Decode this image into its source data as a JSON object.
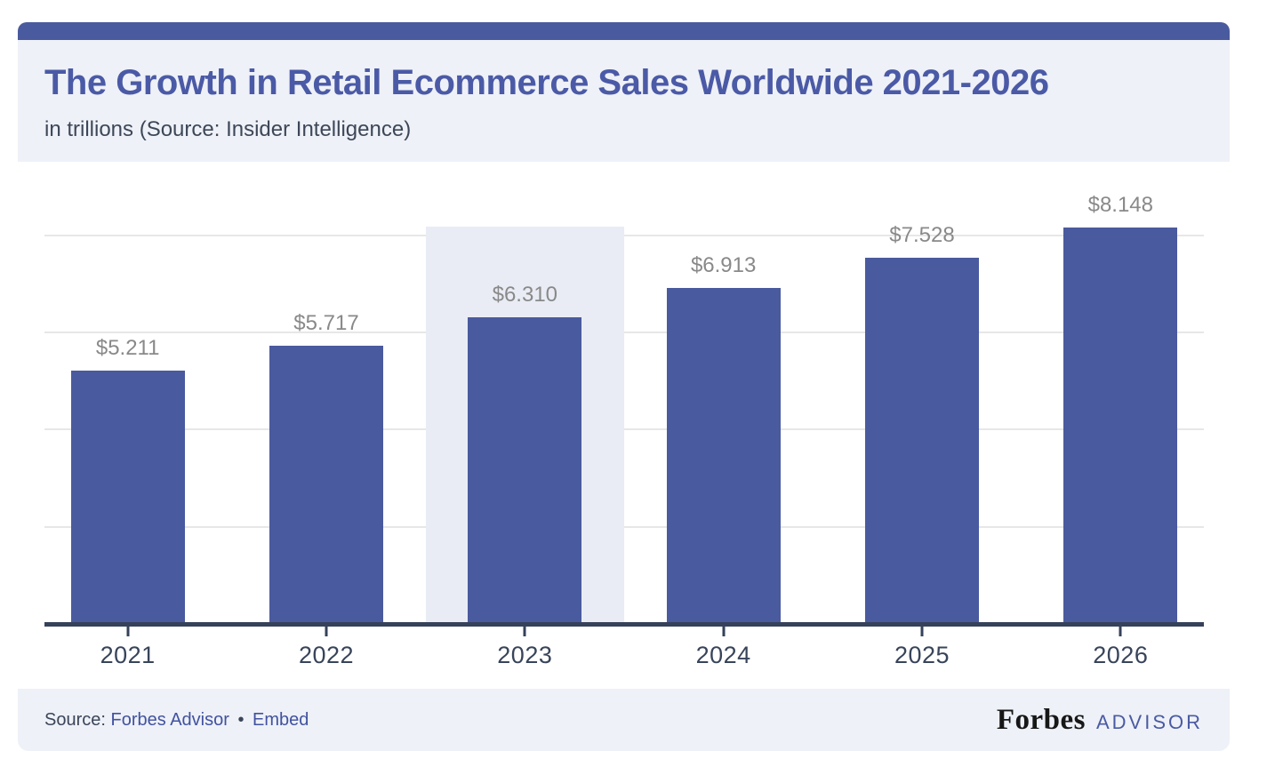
{
  "header": {
    "title": "The Growth in Retail Ecommerce Sales Worldwide 2021-2026",
    "subtitle": "in trillions (Source: Insider Intelligence)"
  },
  "chart_data": {
    "type": "bar",
    "title": "The Growth in Retail Ecommerce Sales Worldwide 2021-2026",
    "subtitle": "in trillions (Source: Insider Intelligence)",
    "categories": [
      "2021",
      "2022",
      "2023",
      "2024",
      "2025",
      "2026"
    ],
    "values": [
      5.211,
      5.717,
      6.31,
      6.913,
      7.528,
      8.148
    ],
    "value_labels": [
      "$5.211",
      "$5.717",
      "$6.310",
      "$6.913",
      "$7.528",
      "$8.148"
    ],
    "unit": "trillions USD",
    "highlighted_category": "2023",
    "ylim": [
      0,
      8.175
    ],
    "gridline_values": [
      2,
      4,
      6,
      8
    ],
    "grid": "horizontal-only-no-axis-labels",
    "legend_position": "none",
    "bar_color": "#4a5a9e",
    "highlight_band_color": "#e9ecf4",
    "xlabel": "",
    "ylabel": ""
  },
  "footer": {
    "source_label": "Source:",
    "source_link": "Forbes Advisor",
    "separator": "•",
    "embed_link": "Embed",
    "brand_serif": "Forbes",
    "brand_sans": "ADVISOR"
  },
  "colors": {
    "accent": "#4a5a9e",
    "title": "#4b5aa6",
    "header_bg": "#eef1f7",
    "footer_bg": "#eef1f7",
    "axis": "#36415a",
    "gridline": "#e7e7e7",
    "value_label": "#898989",
    "x_label": "#38445a",
    "link": "#4152a0"
  }
}
